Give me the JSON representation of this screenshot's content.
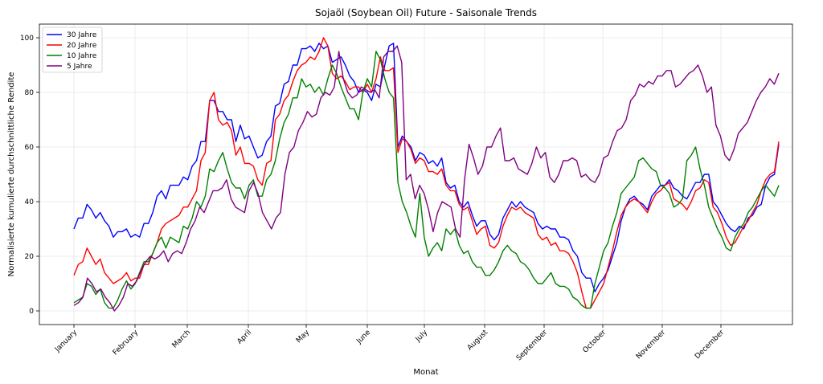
{
  "chart_data": {
    "type": "line",
    "title": "Sojaöl (Soybean Oil) Future - Saisonale Trends",
    "xlabel": "Monat",
    "ylabel": "Normalisierte kumulierte durchschnittliche Rendite",
    "x_ticks": [
      "January",
      "February",
      "March",
      "April",
      "May",
      "June",
      "July",
      "August",
      "September",
      "October",
      "November",
      "December"
    ],
    "y_ticks": [
      0,
      20,
      40,
      60,
      80,
      100
    ],
    "xlim": [
      0,
      12
    ],
    "ylim": [
      -5,
      105
    ],
    "grid": true,
    "legend_position": "top-left",
    "series": [
      {
        "name": "30 Jahre",
        "color": "#0000ff",
        "values": [
          30,
          34,
          34,
          39,
          37,
          34,
          36,
          33,
          31,
          27,
          29,
          29,
          30,
          27,
          28,
          27,
          32,
          32,
          36,
          42,
          44,
          41,
          46,
          46,
          46,
          49,
          48,
          53,
          55,
          62,
          62,
          77,
          77,
          73,
          73,
          70,
          70,
          62,
          68,
          63,
          64,
          60,
          56,
          57,
          62,
          64,
          75,
          76,
          83,
          84,
          90,
          90,
          96,
          96,
          97,
          95,
          98,
          96,
          97,
          91,
          92,
          93,
          90,
          86,
          84,
          80,
          81,
          80,
          77,
          83,
          82,
          90,
          97,
          98,
          60,
          64,
          62,
          60,
          55,
          58,
          57,
          54,
          55,
          53,
          56,
          47,
          45,
          46,
          40,
          38,
          40,
          35,
          31,
          33,
          33,
          28,
          26,
          28,
          34,
          37,
          40,
          38,
          40,
          38,
          37,
          36,
          32,
          30,
          31,
          30,
          30,
          27,
          27,
          26,
          22,
          20,
          14,
          12,
          12,
          7,
          10,
          12,
          15,
          20,
          25,
          33,
          38,
          41,
          42,
          40,
          39,
          37,
          42,
          44,
          46,
          46,
          48,
          45,
          44,
          42,
          41,
          44,
          47,
          47,
          50,
          50,
          40,
          38,
          35,
          32,
          30,
          29,
          31,
          30,
          34,
          35,
          38,
          39,
          46,
          49,
          50,
          61
        ],
        "dense_values": true
      },
      {
        "name": "20 Jahre",
        "color": "#ff0000",
        "values": [
          13,
          17,
          18,
          23,
          20,
          17,
          19,
          14,
          12,
          10,
          11,
          12,
          14,
          11,
          12,
          12,
          17,
          17,
          21,
          25,
          30,
          32,
          33,
          34,
          35,
          38,
          38,
          41,
          44,
          55,
          58,
          77,
          80,
          70,
          68,
          69,
          66,
          57,
          60,
          54,
          54,
          53,
          48,
          46,
          54,
          55,
          70,
          72,
          77,
          79,
          84,
          88,
          90,
          91,
          93,
          92,
          95,
          100,
          97,
          87,
          85,
          86,
          84,
          81,
          82,
          82,
          80,
          83,
          80,
          85,
          93,
          88,
          88,
          89,
          58,
          63,
          62,
          59,
          54,
          56,
          55,
          51,
          51,
          50,
          52,
          46,
          44,
          44,
          39,
          37,
          38,
          33,
          28,
          30,
          31,
          24,
          23,
          25,
          31,
          35,
          38,
          37,
          38,
          36,
          35,
          34,
          28,
          26,
          27,
          24,
          25,
          22,
          22,
          21,
          18,
          14,
          7,
          1,
          1,
          4,
          7,
          10,
          16,
          22,
          29,
          35,
          38,
          40,
          41,
          40,
          38,
          36,
          40,
          43,
          44,
          46,
          47,
          41,
          40,
          39,
          37,
          40,
          44,
          45,
          48,
          47,
          38,
          36,
          32,
          27,
          24,
          25,
          28,
          31,
          33,
          36,
          39,
          44,
          48,
          50,
          51,
          62
        ],
        "dense_values": true
      },
      {
        "name": "10 Jahre",
        "color": "#008000",
        "values": [
          3,
          4,
          5,
          10,
          9,
          6,
          8,
          3,
          1,
          1,
          4,
          8,
          11,
          8,
          10,
          14,
          18,
          18,
          21,
          25,
          27,
          23,
          27,
          26,
          25,
          31,
          30,
          34,
          40,
          38,
          42,
          52,
          51,
          55,
          58,
          52,
          47,
          45,
          45,
          41,
          46,
          48,
          42,
          42,
          48,
          50,
          55,
          63,
          69,
          72,
          78,
          78,
          85,
          82,
          83,
          80,
          82,
          79,
          85,
          90,
          87,
          82,
          78,
          74,
          74,
          70,
          80,
          85,
          82,
          95,
          92,
          85,
          80,
          78,
          47,
          40,
          36,
          31,
          27,
          43,
          27,
          20,
          23,
          25,
          22,
          30,
          28,
          30,
          24,
          21,
          22,
          18,
          16,
          16,
          13,
          13,
          15,
          18,
          22,
          24,
          22,
          21,
          18,
          17,
          15,
          12,
          10,
          10,
          12,
          14,
          10,
          9,
          9,
          8,
          5,
          4,
          2,
          1,
          1,
          10,
          16,
          22,
          25,
          31,
          36,
          43,
          45,
          47,
          49,
          55,
          56,
          54,
          52,
          51,
          46,
          45,
          43,
          38,
          39,
          41,
          55,
          57,
          60,
          52,
          46,
          38,
          34,
          30,
          27,
          23,
          22,
          27,
          30,
          32,
          36,
          38,
          41,
          44,
          46,
          44,
          42,
          46
        ],
        "dense_values": true
      },
      {
        "name": "5 Jahre",
        "color": "#800080",
        "values": [
          2,
          3,
          5,
          12,
          10,
          7,
          8,
          5,
          3,
          0,
          2,
          5,
          10,
          9,
          11,
          15,
          18,
          20,
          19,
          20,
          22,
          18,
          21,
          22,
          21,
          25,
          30,
          33,
          38,
          36,
          40,
          44,
          44,
          45,
          48,
          41,
          38,
          37,
          36,
          44,
          47,
          43,
          36,
          33,
          30,
          34,
          36,
          50,
          58,
          60,
          66,
          69,
          73,
          71,
          72,
          78,
          80,
          79,
          82,
          95,
          85,
          80,
          78,
          79,
          82,
          81,
          80,
          81,
          78,
          93,
          95,
          95,
          97,
          91,
          48,
          50,
          41,
          46,
          43,
          37,
          29,
          36,
          40,
          39,
          38,
          30,
          27,
          48,
          61,
          56,
          50,
          53,
          60,
          60,
          64,
          67,
          55,
          55,
          56,
          52,
          51,
          50,
          54,
          60,
          56,
          58,
          49,
          47,
          50,
          55,
          55,
          56,
          55,
          49,
          50,
          48,
          47,
          50,
          56,
          57,
          62,
          66,
          67,
          70,
          77,
          79,
          83,
          82,
          84,
          83,
          86,
          86,
          88,
          88,
          82,
          83,
          85,
          87,
          88,
          90,
          86,
          80,
          82,
          68,
          64,
          57,
          55,
          59,
          65,
          67,
          69,
          73,
          77,
          80,
          82,
          85,
          83,
          87
        ],
        "dense_values": true
      }
    ]
  }
}
